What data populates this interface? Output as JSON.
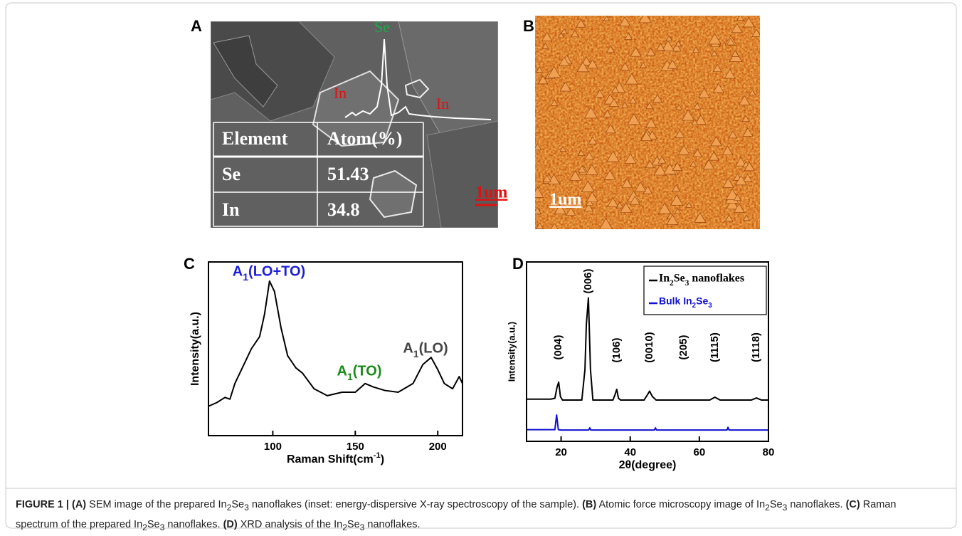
{
  "panel_labels": [
    "A",
    "B",
    "C",
    "D"
  ],
  "panel_a": {
    "peak_labels": [
      {
        "text": "Se",
        "color": "#1fa84a"
      },
      {
        "text": "In",
        "color": "#e01010"
      },
      {
        "text": "In",
        "color": "#e01010"
      }
    ],
    "table": {
      "header": [
        "Element",
        "Atom(%)"
      ],
      "rows": [
        [
          "Se",
          51.43
        ],
        [
          "In",
          34.8
        ]
      ]
    },
    "scale_bar": "1um"
  },
  "panel_b": {
    "scale_bar": "1um"
  },
  "chart_data": [
    {
      "type": "line",
      "x_label": "Raman Shift(cm-1)",
      "y_label": "Intensity(a.u.)",
      "xlim": [
        61,
        215
      ],
      "xticks": [
        100,
        150,
        200
      ],
      "ylim": [
        0,
        100
      ],
      "x": [
        61.2,
        66,
        71,
        74,
        77,
        81,
        87,
        92,
        95,
        98,
        101,
        105,
        109,
        114,
        118,
        125,
        133,
        142,
        150,
        156,
        161,
        168,
        176,
        185,
        191,
        196,
        200,
        204,
        209,
        213,
        215
      ],
      "series": [
        {
          "color": "#000000",
          "values": [
            17,
            19,
            22,
            21,
            30,
            38,
            50,
            57,
            70,
            89,
            83,
            62,
            46,
            39,
            36,
            27,
            23,
            25,
            25,
            30,
            28,
            26,
            25,
            30,
            41,
            45,
            38,
            30,
            27,
            34,
            30
          ]
        }
      ],
      "annotations": [
        {
          "text": "A1(LO+TO)",
          "color": "#1f1fd6"
        },
        {
          "text": "A1(TO)",
          "color": "#1a8a1a"
        },
        {
          "text": "A1(LO)",
          "color": "#444444"
        }
      ]
    },
    {
      "type": "line",
      "x_label": "2θ(degree)",
      "y_label": "Intensity(a.u.)",
      "xlim": [
        10,
        80
      ],
      "xticks": [
        20,
        40,
        60,
        80
      ],
      "ylim": [
        0,
        100
      ],
      "series": [
        {
          "name": "In2Se3 nanoflakes",
          "color": "#000000",
          "x": [
            10,
            17,
            18.2,
            18.8,
            19.3,
            19.8,
            20.4,
            26,
            26.9,
            27.3,
            27.9,
            28.5,
            29.2,
            35,
            35.6,
            36.1,
            36.6,
            37.2,
            44,
            45,
            45.6,
            46.4,
            47.5,
            63,
            64.5,
            66,
            75,
            76.5,
            78,
            80
          ],
          "values": [
            23.5,
            23.5,
            24,
            30,
            33,
            25,
            23,
            23,
            40,
            65,
            80,
            40,
            23,
            23,
            26,
            29,
            24,
            23,
            23,
            26,
            28,
            25,
            23,
            23,
            24.6,
            23,
            23,
            24.2,
            23,
            23
          ]
        },
        {
          "name": "Bulk In2Se3",
          "color": "#1010d0",
          "x": [
            10,
            18.2,
            18.7,
            19.2,
            20,
            28,
            28.3,
            28.6,
            47,
            47.3,
            47.6,
            68,
            68.3,
            68.6,
            80
          ],
          "values": [
            6.5,
            6.5,
            14.7,
            6.5,
            6.3,
            6.3,
            7.5,
            6.3,
            6.3,
            7.5,
            6.3,
            6.3,
            7.8,
            6.3,
            6.3
          ]
        }
      ],
      "peak_labels": [
        "(004)",
        "(006)",
        "(106)",
        "(0010)",
        "(205)",
        "(1115)",
        "(1118)"
      ]
    }
  ],
  "caption": {
    "label": "FIGURE 1 |",
    "items": [
      {
        "tag": "(A)",
        "text": "SEM image of the prepared In2Se3 nanoflakes (inset: energy-dispersive X-ray spectroscopy of the sample)."
      },
      {
        "tag": "(B)",
        "text": "Atomic force microscopy image of In2Se3 nanoflakes."
      },
      {
        "tag": "(C)",
        "text": "Raman spectrum of the prepared In2Se3 nanoflakes."
      },
      {
        "tag": "(D)",
        "text": "XRD analysis of the In2Se3 nanoflakes."
      }
    ]
  }
}
